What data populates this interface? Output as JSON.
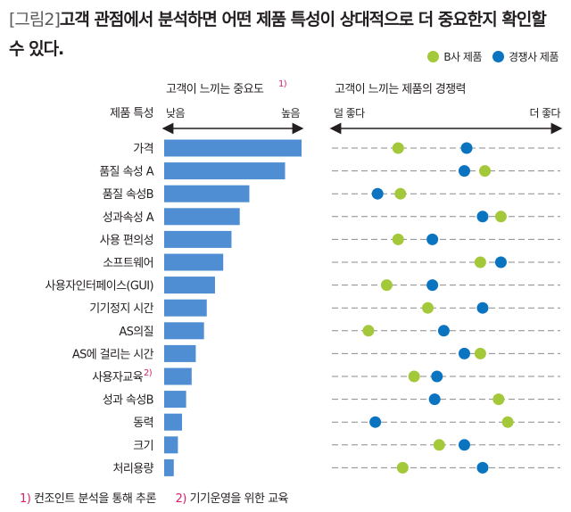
{
  "title": {
    "fig": "[그림2]",
    "text": "고객 관점에서 분석하면 어떤 제품 특성이 상대적으로 더 중요한지 확인할 수 있다."
  },
  "legend": {
    "b_label": "B사 제품",
    "comp_label": "경쟁사 제품"
  },
  "colors": {
    "b": "#a3c93a",
    "comp": "#0a74c1",
    "bar": "#4f8ed3",
    "marker": "#d6216b"
  },
  "footnotes": [
    {
      "num": "1)",
      "text": "컨조인트 분석을 통해 추론"
    },
    {
      "num": "2)",
      "text": "기기운영을 위한 교육"
    }
  ],
  "chart_data": [
    {
      "type": "bar",
      "orientation": "horizontal",
      "title": "고객이 느끼는 중요도",
      "title_note": "1)",
      "category_header": "제품 특성",
      "axis_low": "낮음",
      "axis_high": "높음",
      "xlim": [
        0,
        100
      ],
      "categories": [
        "가격",
        "품질 속성 A",
        "품질 속성B",
        "성과속성 A",
        "사용 편의성",
        "소프트웨어",
        "사용자인터페이스(GUI)",
        "기기정지 시간",
        "AS의질",
        "AS에 걸리는 시간",
        "사용자교육",
        "성과 속성B",
        "동력",
        "크기",
        "처리용량"
      ],
      "category_notes": [
        "",
        "",
        "",
        "",
        "",
        "",
        "",
        "",
        "",
        "",
        "2)",
        "",
        "",
        "",
        ""
      ],
      "values": [
        100,
        88,
        62,
        55,
        49,
        43,
        37,
        31,
        29,
        23,
        20,
        16,
        13,
        10,
        7
      ]
    },
    {
      "type": "scatter",
      "title": "고객이 느끼는 제품의 경쟁력",
      "axis_low": "덜 좋다",
      "axis_high": "더 좋다",
      "xlim": [
        0,
        100
      ],
      "categories": [
        "가격",
        "품질 속성 A",
        "품질 속성B",
        "성과속성 A",
        "사용 편의성",
        "소프트웨어",
        "사용자인터페이스(GUI)",
        "기기정지 시간",
        "AS의질",
        "AS에 걸리는 시간",
        "사용자교육",
        "성과 속성B",
        "동력",
        "크기",
        "처리용량"
      ],
      "series": [
        {
          "name": "B사 제품",
          "values": [
            29,
            67,
            30,
            74,
            29,
            65,
            24,
            42,
            16,
            65,
            36,
            73,
            77,
            47,
            31
          ]
        },
        {
          "name": "경쟁사 제품",
          "values": [
            59,
            58,
            20,
            66,
            44,
            74,
            44,
            66,
            49,
            58,
            46,
            45,
            19,
            58,
            66
          ]
        }
      ]
    }
  ]
}
